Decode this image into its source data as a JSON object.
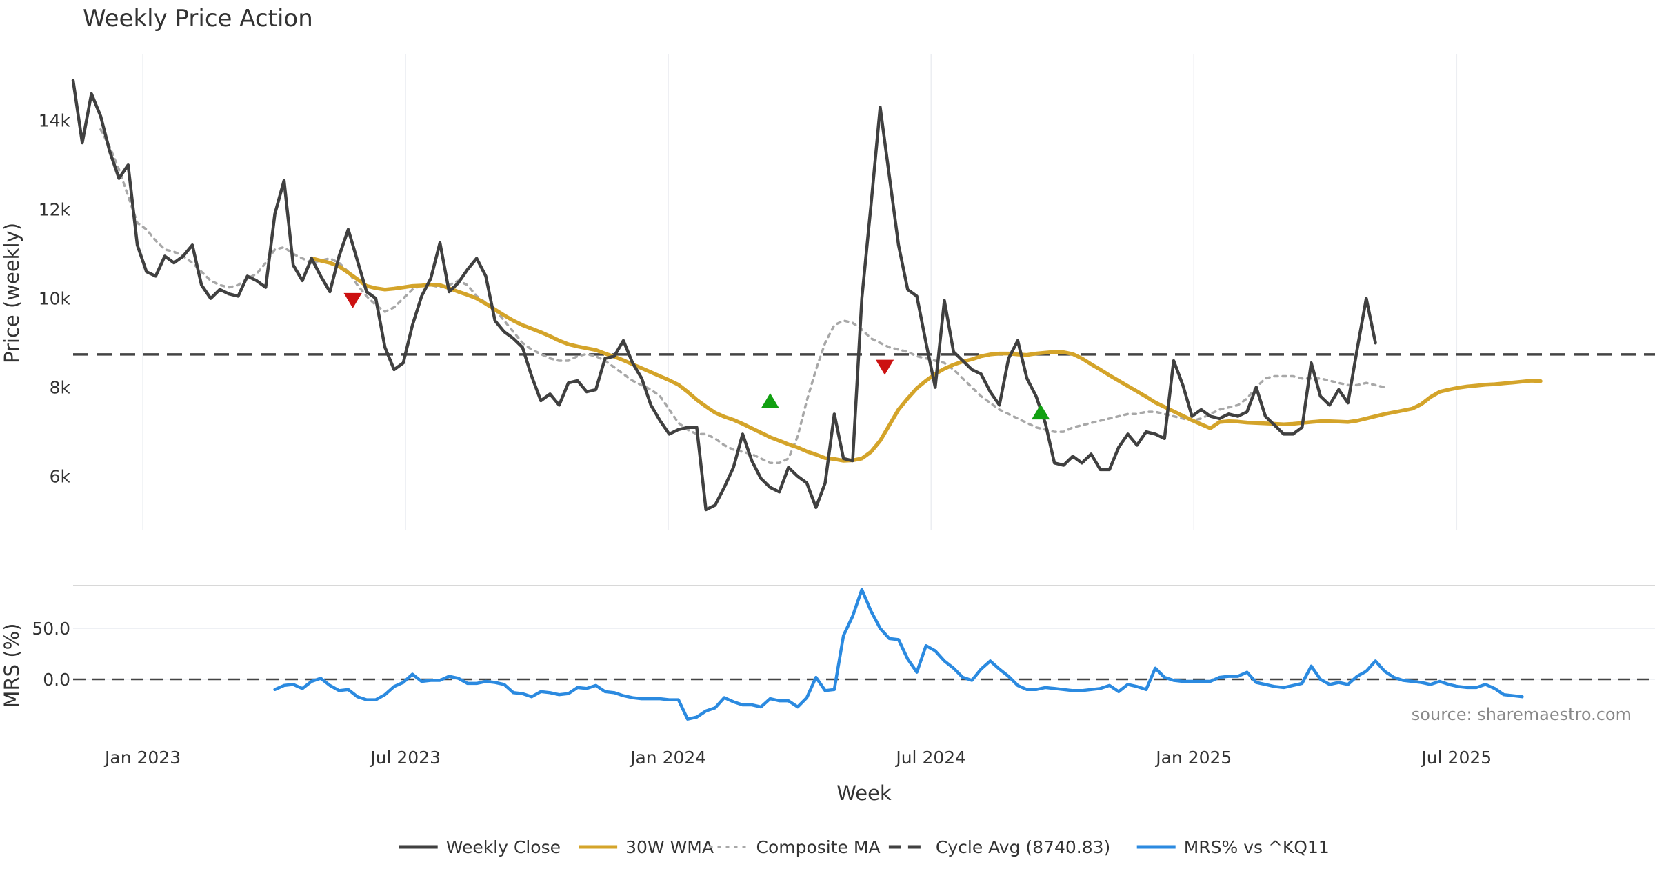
{
  "chart_data": {
    "title": "Weekly Price Action",
    "xlabel": "Week",
    "x_ticks": [
      "Jan 2023",
      "Jul 2023",
      "Jan 2024",
      "Jul 2024",
      "Jan 2025",
      "Jul 2025"
    ],
    "x_range": [
      0,
      142
    ],
    "source_note": "source: sharemaestro.com",
    "price_panel": {
      "type": "line",
      "ylabel": "Price (weekly)",
      "ylim": [
        4800,
        15500
      ],
      "y_ticks": [
        {
          "value": 6000,
          "label": "6k"
        },
        {
          "value": 8000,
          "label": "8k"
        },
        {
          "value": 10000,
          "label": "10k"
        },
        {
          "value": 12000,
          "label": "12k"
        },
        {
          "value": 14000,
          "label": "14k"
        }
      ],
      "cycle_avg": 8740.83,
      "series": [
        {
          "name": "Weekly Close",
          "color": "#404040",
          "style": "solid",
          "start": 0,
          "values": [
            14900,
            13500,
            14600,
            14100,
            13300,
            12700,
            13000,
            11200,
            10600,
            10500,
            10950,
            10800,
            10950,
            11200,
            10300,
            10000,
            10200,
            10100,
            10050,
            10500,
            10400,
            10250,
            11900,
            12650,
            10750,
            10400,
            10900,
            10500,
            10150,
            10950,
            11550,
            10850,
            10150,
            10000,
            8900,
            8400,
            8550,
            9400,
            10050,
            10450,
            11250,
            10150,
            10350,
            10650,
            10900,
            10500,
            9500,
            9250,
            9100,
            8900,
            8250,
            7700,
            7850,
            7600,
            8100,
            8150,
            7900,
            7950,
            8650,
            8700,
            9050,
            8550,
            8200,
            7600,
            7250,
            6950,
            7050,
            7100,
            7100,
            5250,
            5350,
            5750,
            6200,
            6950,
            6350,
            5950,
            5750,
            5650,
            6200,
            6000,
            5850,
            5300,
            5850,
            7400,
            6400,
            6350,
            10000,
            12100,
            14300,
            12750,
            11200,
            10200,
            10050,
            9000,
            8000,
            9950,
            8800,
            8600,
            8400,
            8300,
            7900,
            7600,
            8650,
            9050,
            8200,
            7800,
            7200,
            6300,
            6250,
            6450,
            6300,
            6500,
            6150,
            6150,
            6650,
            6950,
            6700,
            7000,
            6950,
            6850,
            8600,
            8050,
            7350,
            7500,
            7350,
            7300,
            7400,
            7350,
            7450,
            8000,
            7350,
            7150,
            6950,
            6950,
            7100,
            8550,
            7800,
            7600,
            7950,
            7650,
            8850,
            10000,
            9000
          ]
        },
        {
          "name": "30W WMA",
          "color": "#d4a42a",
          "style": "solid",
          "start": 26,
          "values": [
            10900,
            10850,
            10800,
            10720,
            10580,
            10430,
            10280,
            10230,
            10200,
            10220,
            10250,
            10280,
            10290,
            10310,
            10300,
            10230,
            10150,
            10080,
            10000,
            9880,
            9750,
            9620,
            9500,
            9400,
            9320,
            9240,
            9150,
            9050,
            8970,
            8920,
            8880,
            8840,
            8760,
            8690,
            8610,
            8520,
            8430,
            8340,
            8250,
            8160,
            8060,
            7900,
            7720,
            7570,
            7430,
            7340,
            7270,
            7180,
            7080,
            6980,
            6880,
            6800,
            6720,
            6650,
            6560,
            6490,
            6410,
            6390,
            6350,
            6360,
            6400,
            6550,
            6800,
            7150,
            7500,
            7750,
            7980,
            8150,
            8300,
            8420,
            8510,
            8580,
            8630,
            8700,
            8740,
            8760,
            8760,
            8740,
            8730,
            8760,
            8780,
            8800,
            8790,
            8750,
            8650,
            8520,
            8400,
            8270,
            8150,
            8030,
            7910,
            7790,
            7660,
            7560,
            7460,
            7360,
            7260,
            7170,
            7080,
            7220,
            7240,
            7230,
            7210,
            7200,
            7190,
            7180,
            7170,
            7180,
            7200,
            7220,
            7240,
            7240,
            7230,
            7220,
            7250,
            7300,
            7350,
            7400,
            7440,
            7480,
            7520,
            7620,
            7780,
            7900,
            7950,
            7990,
            8020,
            8040,
            8060,
            8070,
            8090,
            8110,
            8130,
            8150,
            8140
          ]
        },
        {
          "name": "Composite MA",
          "color": "#a8a8a8",
          "style": "dotted",
          "start": 3,
          "values": [
            13800,
            13400,
            12900,
            12300,
            11700,
            11550,
            11300,
            11100,
            11050,
            10950,
            10800,
            10600,
            10400,
            10300,
            10250,
            10300,
            10450,
            10550,
            10800,
            11100,
            11150,
            11000,
            10900,
            10800,
            10850,
            10900,
            10800,
            10600,
            10300,
            10050,
            9850,
            9700,
            9800,
            10000,
            10200,
            10300,
            10300,
            10250,
            10300,
            10400,
            10300,
            10050,
            9900,
            9750,
            9500,
            9250,
            9000,
            8850,
            8750,
            8650,
            8600,
            8600,
            8700,
            8750,
            8700,
            8600,
            8450,
            8300,
            8150,
            8050,
            7950,
            7800,
            7500,
            7200,
            7050,
            6950,
            6950,
            6850,
            6700,
            6600,
            6550,
            6500,
            6400,
            6300,
            6300,
            6400,
            6900,
            7700,
            8400,
            9000,
            9400,
            9500,
            9450,
            9300,
            9100,
            9000,
            8900,
            8850,
            8800,
            8700,
            8650,
            8600,
            8550,
            8400,
            8200,
            8000,
            7800,
            7650,
            7500,
            7400,
            7300,
            7200,
            7100,
            7050,
            7000,
            7000,
            7100,
            7150,
            7200,
            7250,
            7300,
            7350,
            7400,
            7400,
            7450,
            7450,
            7400,
            7350,
            7300,
            7250,
            7300,
            7400,
            7500,
            7550,
            7600,
            7750,
            8000,
            8200,
            8250,
            8250,
            8250,
            8200,
            8200,
            8200,
            8150,
            8100,
            8050,
            8050,
            8100,
            8050,
            8000
          ]
        }
      ],
      "markers": [
        {
          "type": "sell",
          "x": 30.5,
          "y": 9950,
          "color": "#cc1111"
        },
        {
          "type": "buy",
          "x": 76,
          "y": 7700,
          "color": "#11a011"
        },
        {
          "type": "sell",
          "x": 88.5,
          "y": 8450,
          "color": "#cc1111"
        },
        {
          "type": "buy",
          "x": 105.5,
          "y": 7450,
          "color": "#11a011"
        }
      ]
    },
    "mrs_panel": {
      "type": "line",
      "ylabel": "MRS (%)",
      "ylim": [
        -48,
        92
      ],
      "y_ticks": [
        {
          "value": 0,
          "label": "0.0"
        },
        {
          "value": 50,
          "label": "50.0"
        }
      ],
      "series": [
        {
          "name": "MRS% vs ^KQ11",
          "color": "#2b8ae0",
          "style": "solid",
          "start": 22,
          "values": [
            -10,
            -6,
            -5,
            -9,
            -2,
            1,
            -6,
            -11,
            -10,
            -17,
            -20,
            -20,
            -15,
            -7,
            -3,
            5,
            -2,
            -1,
            -1,
            3,
            1,
            -4,
            -4,
            -2,
            -3,
            -5,
            -13,
            -14,
            -17,
            -12,
            -13,
            -15,
            -14,
            -8,
            -9,
            -6,
            -12,
            -13,
            -16,
            -18,
            -19,
            -19,
            -19,
            -20,
            -20,
            -39,
            -37,
            -31,
            -28,
            -18,
            -22,
            -25,
            -25,
            -27,
            -19,
            -21,
            -21,
            -27,
            -18,
            2,
            -11,
            -10,
            43,
            62,
            88,
            67,
            50,
            40,
            39,
            20,
            7,
            33,
            28,
            18,
            11,
            2,
            -1,
            10,
            18,
            10,
            3,
            -6,
            -10,
            -10,
            -8,
            -9,
            -10,
            -11,
            -11,
            -10,
            -9,
            -6,
            -12,
            -5,
            -7,
            -10,
            11,
            2,
            -1,
            -2,
            -2,
            -2,
            -2,
            2,
            3,
            3,
            7,
            -3,
            -5,
            -7,
            -8,
            -6,
            -4,
            13,
            0,
            -5,
            -3,
            -5,
            3,
            8,
            18,
            8,
            2,
            -1,
            -2,
            -3,
            -5,
            -2,
            -5,
            -7,
            -8,
            -8,
            -5,
            -9,
            -15,
            -16,
            -17
          ]
        }
      ]
    },
    "legend": [
      {
        "label": "Weekly Close",
        "color": "#404040",
        "style": "solid"
      },
      {
        "label": "30W WMA",
        "color": "#d4a42a",
        "style": "solid"
      },
      {
        "label": "Composite MA",
        "color": "#a8a8a8",
        "style": "dotted"
      },
      {
        "label": "Cycle Avg (8740.83)",
        "color": "#404040",
        "style": "dashed"
      },
      {
        "label": "MRS% vs ^KQ11",
        "color": "#2b8ae0",
        "style": "solid"
      }
    ]
  }
}
